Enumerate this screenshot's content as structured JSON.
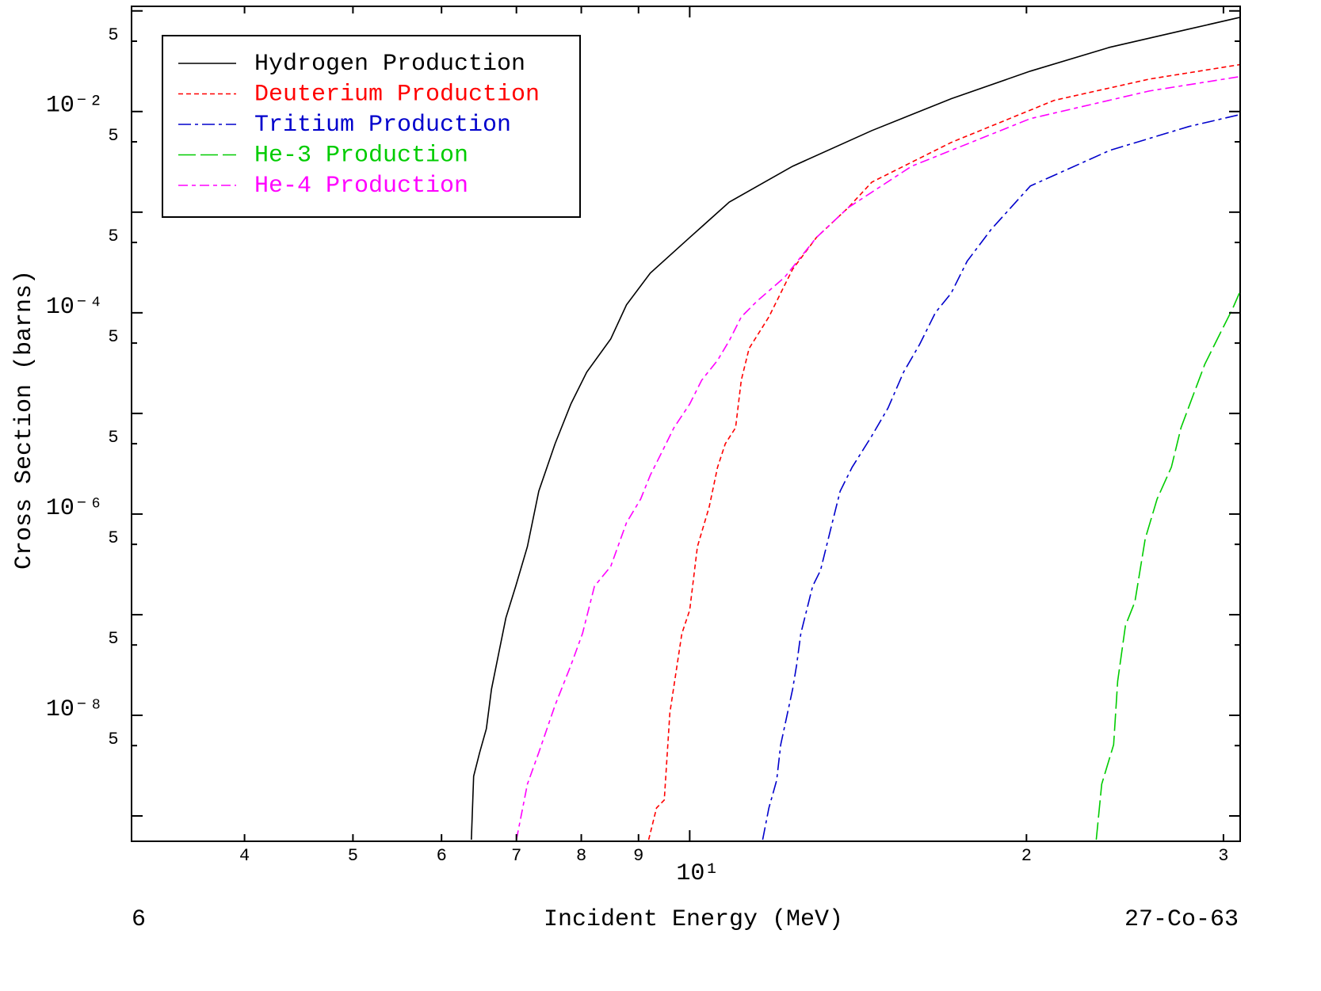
{
  "chart_data": {
    "type": "line",
    "xlabel": "Incident Energy (MeV)",
    "ylabel": "Cross Section (barns)",
    "annotations": [
      "6",
      "27-Co-63"
    ],
    "xscale": "log",
    "yscale": "log",
    "xlim": [
      3.17,
      31.05
    ],
    "ylim": [
      5.6e-10,
      0.111
    ],
    "xticks": [
      4,
      5,
      6,
      7,
      8,
      9,
      {
        "value": 10,
        "label": "10¹"
      },
      {
        "value": 20,
        "label": "2"
      },
      {
        "value": 30,
        "label": "3"
      }
    ],
    "yticks": [
      {
        "value": 0.1,
        "label": null
      },
      {
        "value": 0.05,
        "label": "5"
      },
      {
        "value": 0.01,
        "label": "10⁻²"
      },
      {
        "value": 0.005,
        "label": "5"
      },
      {
        "value": 0.001,
        "label": null
      },
      {
        "value": 0.0005,
        "label": "5"
      },
      {
        "value": 0.0001,
        "label": "10⁻⁴"
      },
      {
        "value": 5e-05,
        "label": "5"
      },
      {
        "value": 1e-05,
        "label": null
      },
      {
        "value": 5e-06,
        "label": "5"
      },
      {
        "value": 1e-06,
        "label": "10⁻⁶"
      },
      {
        "value": 5e-07,
        "label": "5"
      },
      {
        "value": 1e-07,
        "label": null
      },
      {
        "value": 5e-08,
        "label": "5"
      },
      {
        "value": 1e-08,
        "label": "10⁻⁸"
      },
      {
        "value": 5e-09,
        "label": "5"
      },
      {
        "value": 1e-09,
        "label": null
      }
    ],
    "legend": "upper left",
    "series": [
      {
        "name": "Hydrogen Production",
        "color": "#000000",
        "dash": "none",
        "x": [
          6.38,
          6.41,
          6.49,
          6.58,
          6.65,
          6.76,
          6.85,
          6.99,
          7.16,
          7.33,
          7.58,
          7.83,
          8.09,
          8.5,
          8.78,
          9.22,
          10,
          10.85,
          12.36,
          14.55,
          17.13,
          20.16,
          23.74,
          27.94,
          31
        ],
        "values": [
          5.8e-10,
          2.48e-09,
          4.27e-09,
          7.35e-09,
          1.82e-08,
          4.5e-08,
          9.3e-08,
          1.92e-07,
          4.75e-07,
          1.69e-06,
          5e-06,
          1.24e-05,
          2.57e-05,
          5.5e-05,
          0.00012,
          0.000248,
          0.00056,
          0.00126,
          0.00286,
          0.00647,
          0.0134,
          0.0252,
          0.0435,
          0.066,
          0.086
        ]
      },
      {
        "name": "Deuterium Production",
        "color": "#ff0000",
        "dash": "6 4",
        "x": [
          9.19,
          9.34,
          9.49,
          9.6,
          9.84,
          10,
          10.16,
          10.41,
          10.59,
          10.76,
          10.99,
          11.12,
          11.3,
          11.77,
          12.16,
          12.36,
          12.98,
          13.86,
          14.55,
          17.13,
          21.17,
          25.75,
          31
        ],
        "values": [
          5.8e-10,
          1.2e-09,
          1.44e-09,
          1.06e-08,
          6.5e-08,
          1.11e-07,
          4.75e-07,
          1.18e-06,
          2.92e-06,
          5e-06,
          7.2e-06,
          2.14e-05,
          4.42e-05,
          9.1e-05,
          0.000189,
          0.000271,
          0.00056,
          0.00111,
          0.00199,
          0.00493,
          0.0129,
          0.021,
          0.0292
        ]
      },
      {
        "name": "Tritium Production",
        "color": "#0000cc",
        "dash": "16 5 4 5",
        "x": [
          11.62,
          11.77,
          11.96,
          12.06,
          12.36,
          12.46,
          12.57,
          12.88,
          13.09,
          13.41,
          13.63,
          13.97,
          14.55,
          15.04,
          15.53,
          16.05,
          16.58,
          17.13,
          17.7,
          18.59,
          20.16,
          23.74,
          27.94,
          31
        ],
        "values": [
          5.8e-10,
          1.2e-09,
          2.26e-09,
          5.1e-09,
          1.82e-08,
          3.13e-08,
          6.5e-08,
          1.92e-07,
          2.76e-07,
          8.2e-07,
          1.69e-06,
          2.92e-06,
          6e-06,
          1.13e-05,
          2.57e-05,
          4.84e-05,
          0.0001,
          0.000157,
          0.000325,
          0.00067,
          0.00182,
          0.00411,
          0.0071,
          0.0093
        ]
      },
      {
        "name": "He-3 Production",
        "color": "#00cc00",
        "dash": "22 6",
        "x": [
          23.09,
          23.35,
          23.93,
          24.13,
          24.52,
          25.0,
          25.54,
          26.17,
          26.95,
          27.49,
          28.17,
          28.87,
          29.83,
          30.56,
          31
        ],
        "values": [
          5.8e-10,
          2.07e-09,
          5.1e-09,
          2.18e-08,
          7.8e-08,
          1.34e-07,
          5.7e-07,
          1.41e-06,
          2.92e-06,
          7.2e-06,
          1.49e-05,
          3.08e-05,
          6.4e-05,
          0.000109,
          0.000157
        ]
      },
      {
        "name": "He-4 Production",
        "color": "#ff00ff",
        "dash": "12 5 5 5",
        "x": [
          7.0,
          7.16,
          7.33,
          7.58,
          7.83,
          8.02,
          8.22,
          8.5,
          8.78,
          9.04,
          9.22,
          9.45,
          9.68,
          10,
          10.25,
          10.59,
          10.85,
          11.12,
          11.49,
          12.16,
          12.98,
          13.86,
          15.79,
          20.16,
          25.75,
          31
        ],
        "values": [
          5.8e-10,
          2.07e-09,
          4.27e-09,
          1.26e-08,
          3.13e-08,
          6.5e-08,
          1.92e-07,
          3.02e-07,
          8.2e-07,
          1.41e-06,
          2.43e-06,
          4.19e-06,
          7.2e-06,
          1.24e-05,
          2.14e-05,
          3.37e-05,
          5.3e-05,
          9.1e-05,
          0.000131,
          0.000226,
          0.00056,
          0.00111,
          0.00286,
          0.0085,
          0.016,
          0.0222
        ]
      }
    ]
  }
}
